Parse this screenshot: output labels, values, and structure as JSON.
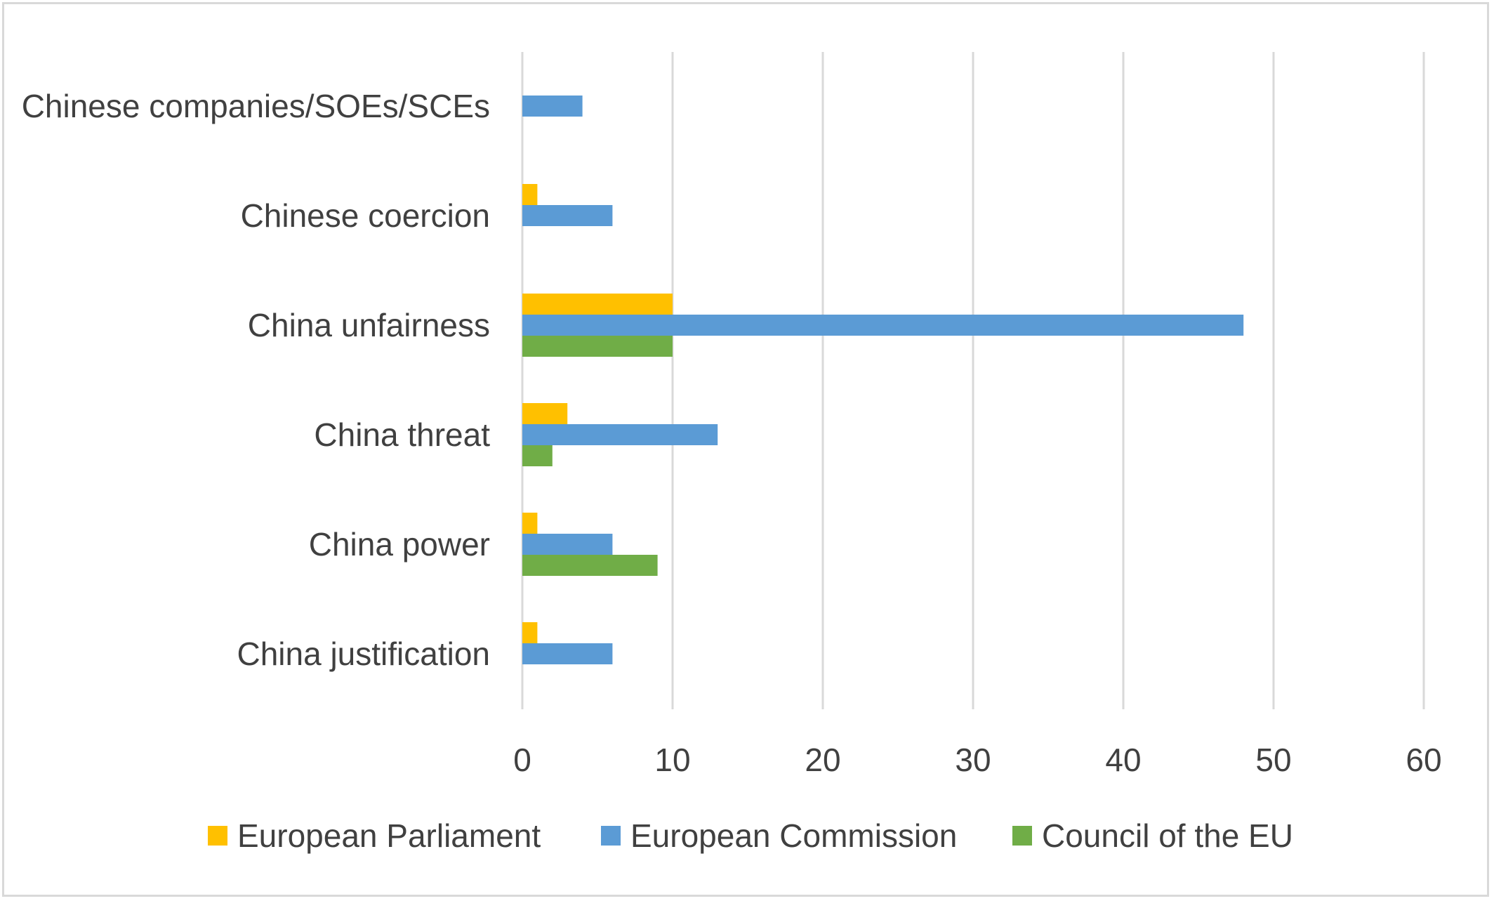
{
  "chart_data": {
    "type": "bar",
    "orientation": "horizontal",
    "categories": [
      "Chinese companies/SOEs/SCEs",
      "Chinese coercion",
      "China unfairness",
      "China threat",
      "China power",
      "China justification"
    ],
    "series": [
      {
        "name": "European Parliament",
        "color": "#ffc000",
        "values": [
          0,
          1,
          10,
          3,
          1,
          1
        ]
      },
      {
        "name": "European Commission",
        "color": "#5b9bd5",
        "values": [
          4,
          6,
          48,
          13,
          6,
          6
        ]
      },
      {
        "name": "Council of the EU",
        "color": "#70ad47",
        "values": [
          0,
          0,
          10,
          2,
          9,
          0
        ]
      }
    ],
    "xlim": [
      0,
      60
    ],
    "xticks": [
      0,
      10,
      20,
      30,
      40,
      50,
      60
    ],
    "title": "",
    "xlabel": "",
    "ylabel": "",
    "grid": "vertical",
    "legend_position": "bottom"
  },
  "colors": {
    "gridline": "#d9d9d9",
    "text": "#404040",
    "frame": "#d9d9d9"
  }
}
